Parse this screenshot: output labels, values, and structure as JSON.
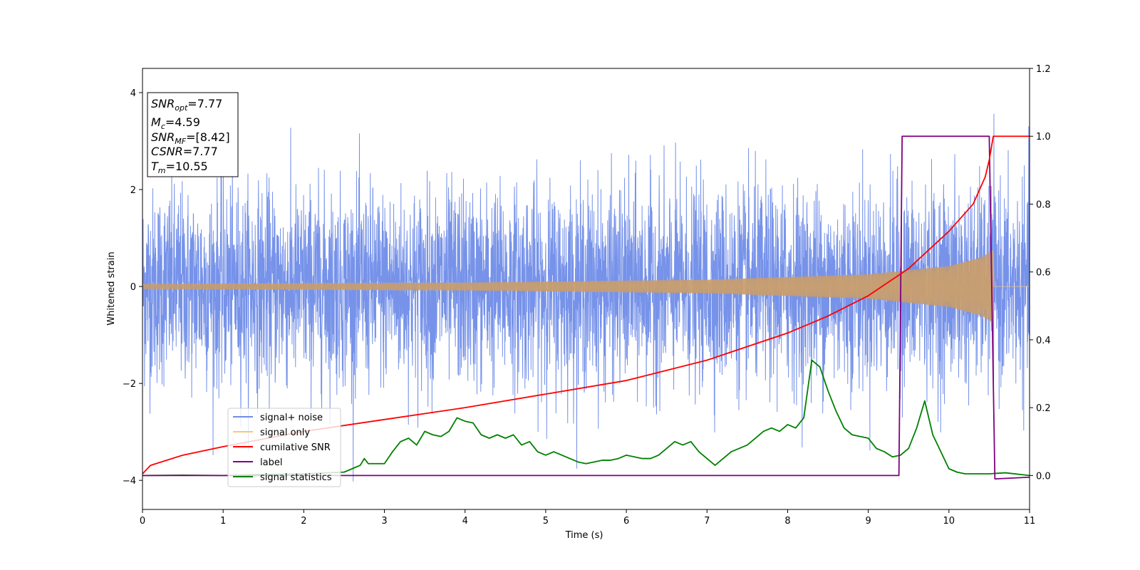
{
  "chart_data": {
    "type": "line",
    "xlabel": "Time (s)",
    "ylabel": "Whitened strain",
    "xlim": [
      0,
      11
    ],
    "ylim": [
      -4.6,
      4.5
    ],
    "y2lim": [
      -0.1,
      1.2
    ],
    "x_ticks": [
      0,
      1,
      2,
      3,
      4,
      5,
      6,
      7,
      8,
      9,
      10,
      11
    ],
    "y_ticks": [
      -4,
      -2,
      0,
      2,
      4
    ],
    "y2_ticks": [
      "0.0",
      "0.2",
      "0.4",
      "0.6",
      "0.8",
      "1.0",
      "1.2"
    ],
    "legend_position": "lower-left",
    "info_box": {
      "snr_opt": "7.77",
      "mc": "4.59",
      "snr_mf": "[8.42]",
      "csnr": "7.77",
      "tm": "10.55"
    },
    "series": [
      {
        "name": "signal+ noise",
        "axis": "left",
        "color": "#6f8ce8",
        "approx_std": 1.0,
        "approx_range": [
          -4.1,
          4.1
        ]
      },
      {
        "name": "signal only",
        "axis": "left",
        "color": "#f5c77a",
        "description": "chirp; amplitude ~0.05 at t=0 growing to ~0.75 at t=10.55, zero afterwards",
        "envelope": [
          [
            0,
            0.05
          ],
          [
            4,
            0.08
          ],
          [
            7,
            0.14
          ],
          [
            9,
            0.25
          ],
          [
            10,
            0.42
          ],
          [
            10.4,
            0.6
          ],
          [
            10.55,
            0.75
          ],
          [
            10.56,
            0.0
          ],
          [
            11,
            0.0
          ]
        ]
      },
      {
        "name": "cumilative SNR",
        "axis": "right",
        "color": "#ff0000",
        "points": [
          [
            0,
            0.005
          ],
          [
            0.1,
            0.03
          ],
          [
            0.5,
            0.06
          ],
          [
            1,
            0.085
          ],
          [
            2,
            0.13
          ],
          [
            3,
            0.165
          ],
          [
            4,
            0.2
          ],
          [
            5,
            0.24
          ],
          [
            6,
            0.28
          ],
          [
            7,
            0.34
          ],
          [
            8,
            0.42
          ],
          [
            8.5,
            0.47
          ],
          [
            9,
            0.53
          ],
          [
            9.5,
            0.61
          ],
          [
            10,
            0.72
          ],
          [
            10.3,
            0.8
          ],
          [
            10.45,
            0.88
          ],
          [
            10.5,
            0.93
          ],
          [
            10.55,
            1.0
          ],
          [
            11,
            1.0
          ]
        ]
      },
      {
        "name": "label",
        "axis": "right",
        "color": "#800080",
        "points": [
          [
            0,
            0.0
          ],
          [
            9.38,
            0.0
          ],
          [
            9.42,
            1.0
          ],
          [
            10.5,
            1.0
          ],
          [
            10.57,
            -0.01
          ],
          [
            11,
            -0.005
          ]
        ]
      },
      {
        "name": "signal statistics",
        "axis": "right",
        "color": "#008000",
        "points": [
          [
            0,
            0.0
          ],
          [
            0.5,
            0.001
          ],
          [
            1,
            0.0
          ],
          [
            1.5,
            0.003
          ],
          [
            2,
            0.005
          ],
          [
            2.5,
            0.01
          ],
          [
            2.6,
            0.02
          ],
          [
            2.7,
            0.03
          ],
          [
            2.75,
            0.05
          ],
          [
            2.8,
            0.035
          ],
          [
            3.0,
            0.035
          ],
          [
            3.1,
            0.07
          ],
          [
            3.2,
            0.1
          ],
          [
            3.3,
            0.11
          ],
          [
            3.4,
            0.09
          ],
          [
            3.5,
            0.13
          ],
          [
            3.6,
            0.12
          ],
          [
            3.7,
            0.115
          ],
          [
            3.8,
            0.13
          ],
          [
            3.9,
            0.17
          ],
          [
            4.0,
            0.16
          ],
          [
            4.1,
            0.155
          ],
          [
            4.2,
            0.12
          ],
          [
            4.3,
            0.11
          ],
          [
            4.4,
            0.12
          ],
          [
            4.5,
            0.11
          ],
          [
            4.6,
            0.12
          ],
          [
            4.7,
            0.09
          ],
          [
            4.8,
            0.1
          ],
          [
            4.9,
            0.07
          ],
          [
            5.0,
            0.06
          ],
          [
            5.1,
            0.07
          ],
          [
            5.2,
            0.06
          ],
          [
            5.3,
            0.05
          ],
          [
            5.4,
            0.04
          ],
          [
            5.5,
            0.035
          ],
          [
            5.6,
            0.04
          ],
          [
            5.7,
            0.045
          ],
          [
            5.8,
            0.045
          ],
          [
            5.9,
            0.05
          ],
          [
            6.0,
            0.06
          ],
          [
            6.1,
            0.055
          ],
          [
            6.2,
            0.05
          ],
          [
            6.3,
            0.05
          ],
          [
            6.4,
            0.06
          ],
          [
            6.5,
            0.08
          ],
          [
            6.6,
            0.1
          ],
          [
            6.7,
            0.09
          ],
          [
            6.8,
            0.1
          ],
          [
            6.9,
            0.07
          ],
          [
            7.0,
            0.05
          ],
          [
            7.1,
            0.03
          ],
          [
            7.2,
            0.05
          ],
          [
            7.3,
            0.07
          ],
          [
            7.4,
            0.08
          ],
          [
            7.5,
            0.09
          ],
          [
            7.6,
            0.11
          ],
          [
            7.7,
            0.13
          ],
          [
            7.8,
            0.14
          ],
          [
            7.9,
            0.13
          ],
          [
            8.0,
            0.15
          ],
          [
            8.1,
            0.14
          ],
          [
            8.2,
            0.17
          ],
          [
            8.3,
            0.34
          ],
          [
            8.4,
            0.32
          ],
          [
            8.5,
            0.25
          ],
          [
            8.6,
            0.19
          ],
          [
            8.7,
            0.14
          ],
          [
            8.8,
            0.12
          ],
          [
            8.9,
            0.115
          ],
          [
            9.0,
            0.11
          ],
          [
            9.1,
            0.08
          ],
          [
            9.2,
            0.07
          ],
          [
            9.3,
            0.055
          ],
          [
            9.4,
            0.06
          ],
          [
            9.5,
            0.08
          ],
          [
            9.6,
            0.14
          ],
          [
            9.65,
            0.18
          ],
          [
            9.7,
            0.22
          ],
          [
            9.8,
            0.12
          ],
          [
            9.9,
            0.07
          ],
          [
            10.0,
            0.02
          ],
          [
            10.1,
            0.01
          ],
          [
            10.2,
            0.005
          ],
          [
            10.5,
            0.005
          ],
          [
            10.7,
            0.008
          ],
          [
            11,
            0.0
          ]
        ]
      }
    ]
  }
}
